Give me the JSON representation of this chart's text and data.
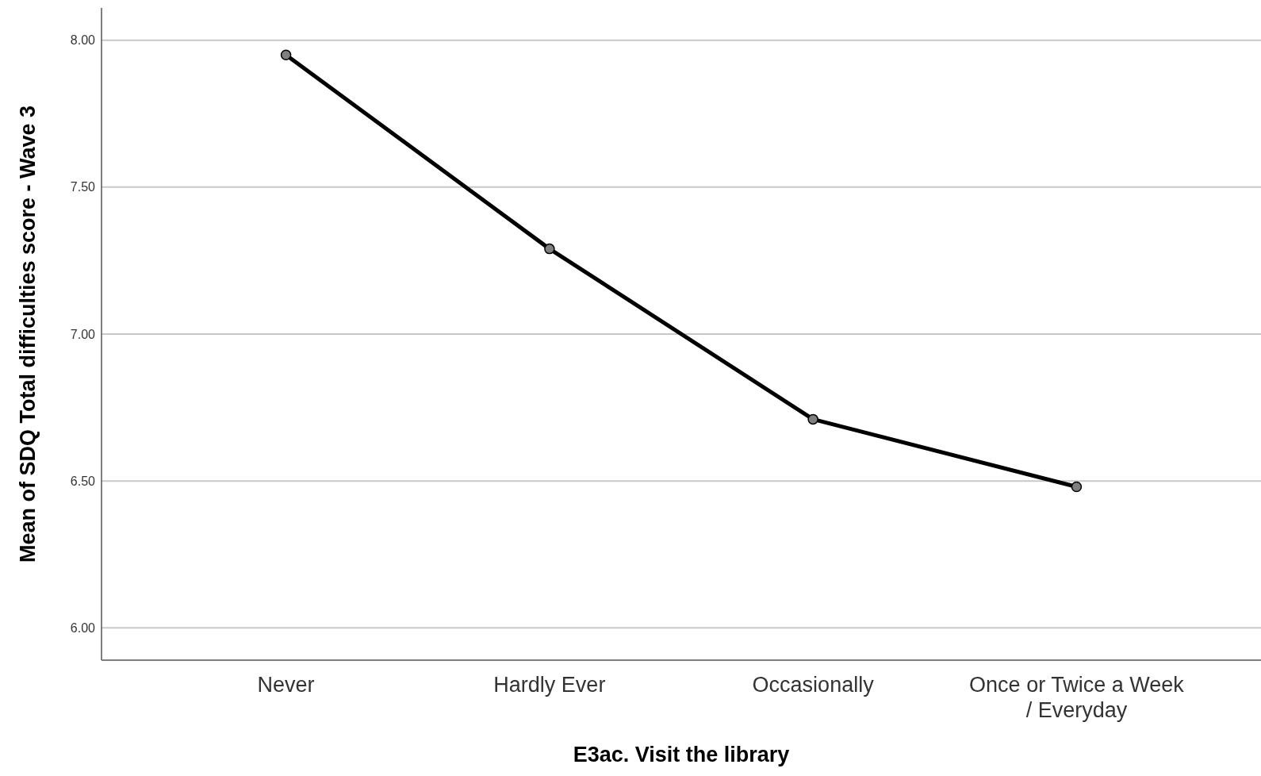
{
  "chart_data": {
    "type": "line",
    "xlabel": "E3ac. Visit the library",
    "ylabel": "Mean of SDQ Total difficulties score - Wave 3",
    "categories": [
      "Never",
      "Hardly Ever",
      "Occasionally",
      "Once or Twice a Week / Everyday"
    ],
    "series": [
      {
        "color": "#000000",
        "values": [
          7.95,
          7.29,
          6.71,
          6.48
        ]
      }
    ],
    "ylim": [
      5.89,
      8.11
    ],
    "yticks": [
      {
        "value": 6,
        "label": "6.00"
      },
      {
        "value": 6.5,
        "label": "6.50"
      },
      {
        "value": 7,
        "label": "7.00"
      },
      {
        "value": 7.5,
        "label": "7.50"
      },
      {
        "value": 8,
        "label": "8.00"
      }
    ],
    "grid": "y",
    "marker": "circle",
    "line_style": "solid"
  }
}
